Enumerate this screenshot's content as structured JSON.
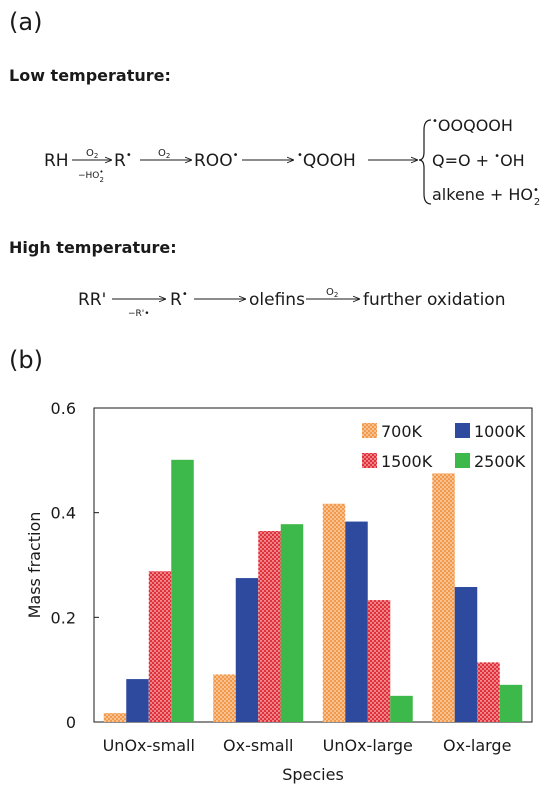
{
  "panel_a": {
    "label": "(a)",
    "low": {
      "title": "Low temperature:",
      "reactant": "RH",
      "step1_top": "O",
      "step1_top_sub": "2",
      "step1_bottom": "−HO",
      "step1_bottom_sup": "•",
      "step1_bottom_sub": "2",
      "species_r": "R",
      "radical_dot": "•",
      "step2_top": "O",
      "step2_top_sub": "2",
      "species_roo": "ROO",
      "species_qooh": "QOOH",
      "product1": "OOQOOH",
      "product2_a": "Q=O + ",
      "product2_b": "OH",
      "product3": "alkene + HO",
      "product3_sub": "2"
    },
    "high": {
      "title": "High temperature:",
      "reactant": "RR'",
      "step1_bottom": "−R'•",
      "species_r": "R",
      "radical_dot": "•",
      "species_olefins": "olefins",
      "step2_top": "O",
      "step2_top_sub": "2",
      "product": "further oxidation"
    }
  },
  "panel_b": {
    "label": "(b)"
  },
  "colors": {
    "s700": "#f2994a",
    "s1000": "#2e4a9e",
    "s1500": "#e0303a",
    "s2500": "#3db84a",
    "dot": "#ffffff",
    "text": "#1a1a1a"
  },
  "chart_data": {
    "type": "bar",
    "categories": [
      "UnOx-small",
      "Ox-small",
      "UnOx-large",
      "Ox-large"
    ],
    "series": [
      {
        "name": "700K",
        "values": [
          0.017,
          0.091,
          0.417,
          0.475
        ],
        "pattern": "dots"
      },
      {
        "name": "1000K",
        "values": [
          0.082,
          0.275,
          0.383,
          0.258
        ],
        "pattern": "solid"
      },
      {
        "name": "1500K",
        "values": [
          0.288,
          0.365,
          0.233,
          0.114
        ],
        "pattern": "dots"
      },
      {
        "name": "2500K",
        "values": [
          0.501,
          0.378,
          0.05,
          0.071
        ],
        "pattern": "solid"
      }
    ],
    "xlabel": "Species",
    "ylabel": "Mass fraction",
    "ylim": [
      0,
      0.6
    ],
    "yticks": [
      "0",
      "0.2",
      "0.4",
      "0.6"
    ],
    "yticks_values": [
      0,
      0.2,
      0.4,
      0.6
    ],
    "grid": false,
    "legend_position": "top-right"
  }
}
